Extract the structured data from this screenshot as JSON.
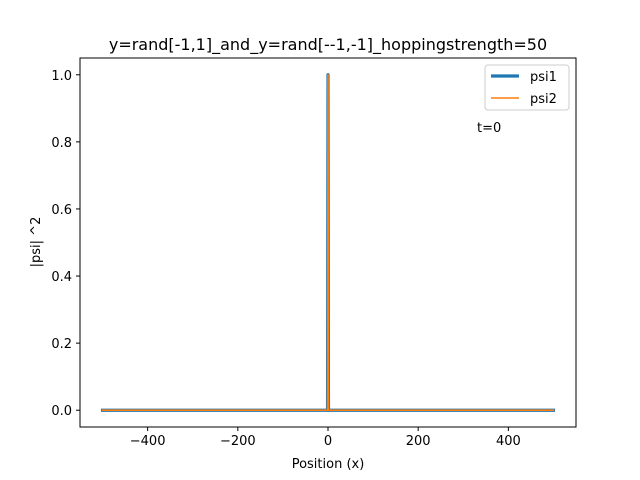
{
  "chart_data": {
    "type": "line",
    "title": "y=rand[-1,1]_and_y=rand[--1,-1]_hoppingstrength=50",
    "xlabel": "Position (x)",
    "ylabel": "|psi| ^2",
    "xlim": [
      -550,
      550
    ],
    "ylim": [
      -0.05,
      1.05
    ],
    "xticks": [
      -400,
      -200,
      0,
      200,
      400
    ],
    "xtick_labels": [
      "−400",
      "−200",
      "0",
      "200",
      "400"
    ],
    "yticks": [
      0.0,
      0.2,
      0.4,
      0.6,
      0.8,
      1.0
    ],
    "ytick_labels": [
      "0.0",
      "0.2",
      "0.4",
      "0.6",
      "0.8",
      "1.0"
    ],
    "grid": false,
    "legend_position": "top-right",
    "annotation": "t=0",
    "series": [
      {
        "name": "psi1",
        "color": "#1f77b4",
        "x": [
          -500,
          -1,
          0,
          1,
          500
        ],
        "y": [
          0.0,
          0.0,
          1.0,
          0.0,
          0.0
        ]
      },
      {
        "name": "psi2",
        "color": "#ff7f0e",
        "x": [
          -500,
          -1,
          0,
          1,
          500
        ],
        "y": [
          0.0,
          0.0,
          1.0,
          0.0,
          0.0
        ]
      }
    ]
  }
}
